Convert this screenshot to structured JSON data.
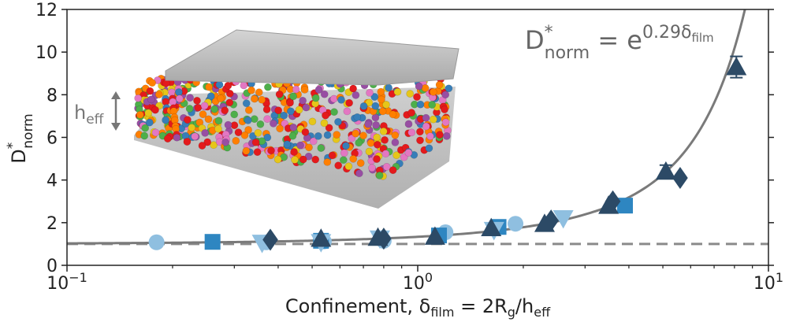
{
  "chart_data": {
    "type": "scatter",
    "xscale": "log",
    "xlim": [
      0.1,
      10
    ],
    "ylim": [
      0,
      12
    ],
    "x_ticks": [
      "10",
      "10"
    ],
    "x_tick_sup": [
      "−1",
      "0",
      "1"
    ],
    "y_ticks": [
      "0",
      "2",
      "4",
      "6",
      "8",
      "10",
      "12"
    ],
    "xlabel": {
      "prefix": "Confinement,  δ",
      "sub1": "film",
      "mid": " = 2R",
      "sub2": "g",
      "mid2": "/h",
      "sub3": "eff"
    },
    "ylabel": {
      "main": "D",
      "sup": "*",
      "sub": "norm"
    },
    "equation": {
      "lhs": "D",
      "lhs_sup": "*",
      "lhs_sub": "norm",
      "eq": " = e",
      "exp": "0.29δ",
      "exp_sub": "film"
    },
    "inset_label": {
      "main": "h",
      "sub": "eff"
    },
    "fit_coefficient": 0.29,
    "reference_value": 1.0,
    "colors": {
      "light": "#8fbfe0",
      "mid": "#2e86c1",
      "dark": "#2c4a66",
      "fit": "#7a7a7a",
      "dashed": "#8a8a8a"
    },
    "series": [
      {
        "marker": "circle",
        "color": "light",
        "x": [
          0.18,
          0.37,
          0.54,
          0.8,
          1.2,
          1.9
        ],
        "y": [
          1.08,
          1.08,
          1.12,
          1.15,
          1.55,
          1.95
        ]
      },
      {
        "marker": "square",
        "color": "mid",
        "x": [
          0.26,
          0.53,
          1.15,
          1.7,
          3.9
        ],
        "y": [
          1.1,
          1.15,
          1.4,
          1.8,
          2.8
        ]
      },
      {
        "marker": "triangle-down",
        "color": "light",
        "x": [
          0.36,
          0.53,
          0.78,
          1.65,
          2.6
        ],
        "y": [
          1.05,
          1.08,
          1.25,
          1.65,
          2.2
        ]
      },
      {
        "marker": "diamond",
        "color": "dark",
        "x": [
          0.38,
          0.8,
          2.4,
          3.6,
          5.6
        ],
        "y": [
          1.2,
          1.25,
          2.1,
          3.0,
          4.1
        ]
      },
      {
        "marker": "triangle-up",
        "color": "dark",
        "x": [
          0.53,
          0.77,
          1.12,
          1.62,
          2.3,
          3.5,
          5.1,
          8.1
        ],
        "y": [
          1.25,
          1.3,
          1.35,
          1.75,
          1.95,
          2.8,
          4.4,
          9.3
        ],
        "yerr": [
          0,
          0,
          0,
          0,
          0,
          0,
          0.3,
          0.5
        ]
      }
    ]
  }
}
